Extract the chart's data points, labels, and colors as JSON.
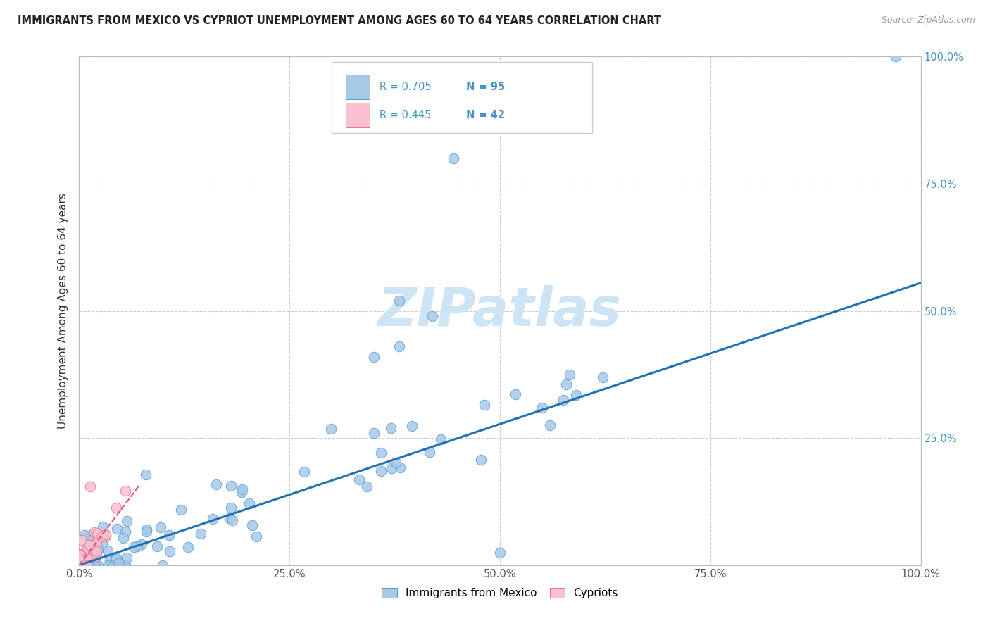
{
  "title": "IMMIGRANTS FROM MEXICO VS CYPRIOT UNEMPLOYMENT AMONG AGES 60 TO 64 YEARS CORRELATION CHART",
  "source": "Source: ZipAtlas.com",
  "ylabel": "Unemployment Among Ages 60 to 64 years",
  "legend_label1": "Immigrants from Mexico",
  "legend_label2": "Cypriots",
  "r1": 0.705,
  "n1": 95,
  "r2": 0.445,
  "n2": 42,
  "color_blue_fill": "#a8c8e8",
  "color_blue_edge": "#5a9fd4",
  "color_blue_line": "#2171b5",
  "color_pink_fill": "#f9c0d0",
  "color_pink_edge": "#e87090",
  "color_pink_line": "#e05080",
  "color_r_blue": "#4393c3",
  "watermark_color": "#cce4f4",
  "xlim": [
    0.0,
    1.0
  ],
  "ylim": [
    0.0,
    1.0
  ],
  "xticks": [
    0.0,
    0.25,
    0.5,
    0.75,
    1.0
  ],
  "yticks": [
    0.0,
    0.25,
    0.5,
    0.75,
    1.0
  ],
  "xtick_labels": [
    "0.0%",
    "25.0%",
    "50.0%",
    "75.0%",
    "100.0%"
  ],
  "right_ytick_labels": [
    "",
    "25.0%",
    "50.0%",
    "75.0%",
    "100.0%"
  ],
  "blue_reg_intercept": 0.0,
  "blue_reg_slope": 0.555,
  "pink_reg_intercept": 0.0,
  "pink_reg_slope": 2.2
}
